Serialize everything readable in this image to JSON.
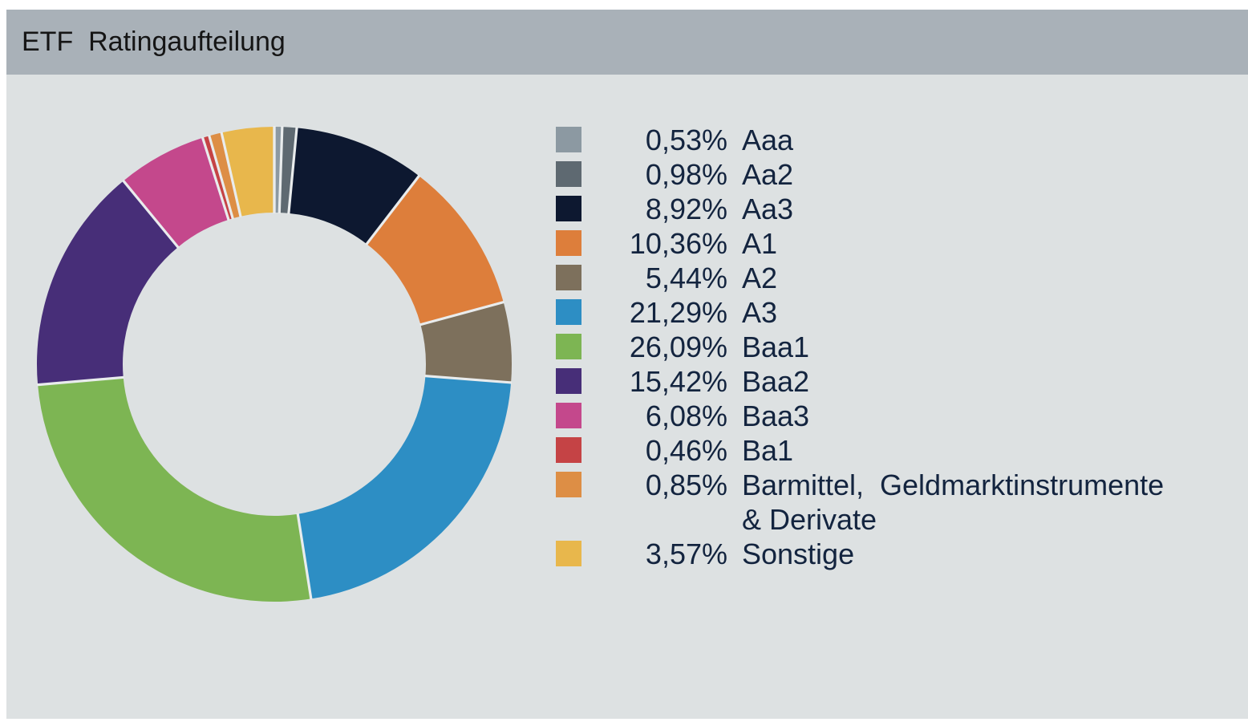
{
  "header": {
    "title": "ETF  Ratingaufteilung"
  },
  "colors": {
    "title_text": "#151515",
    "header_bg": "#a9b1b8",
    "panel_bg": "#dde1e2",
    "legend_text": "#13243f",
    "slice_gap": "#e9eced"
  },
  "chart_data": {
    "type": "pie",
    "variant": "donut",
    "title": "ETF Ratingaufteilung",
    "unit": "%",
    "direction": "clockwise",
    "start_angle_deg": 0,
    "inner_radius_ratio": 0.64,
    "legend_position": "right",
    "grid": false,
    "series": [
      {
        "label": "Aaa",
        "value": 0.53,
        "display": "0,53%",
        "color": "#8c99a2"
      },
      {
        "label": "Aa2",
        "value": 0.98,
        "display": "0,98%",
        "color": "#5e6971"
      },
      {
        "label": "Aa3",
        "value": 8.92,
        "display": "8,92%",
        "color": "#0d1830"
      },
      {
        "label": "A1",
        "value": 10.36,
        "display": "10,36%",
        "color": "#dd7e3b"
      },
      {
        "label": "A2",
        "value": 5.44,
        "display": "5,44%",
        "color": "#7d705c"
      },
      {
        "label": "A3",
        "value": 21.29,
        "display": "21,29%",
        "color": "#2d8ec4"
      },
      {
        "label": "Baa1",
        "value": 26.09,
        "display": "26,09%",
        "color": "#7db553"
      },
      {
        "label": "Baa2",
        "value": 15.42,
        "display": "15,42%",
        "color": "#472e78"
      },
      {
        "label": "Baa3",
        "value": 6.08,
        "display": "6,08%",
        "color": "#c4488c"
      },
      {
        "label": "Ba1",
        "value": 0.46,
        "display": "0,46%",
        "color": "#c54345"
      },
      {
        "label": "Barmittel,  Geldmarktinstrumente & Derivate",
        "value": 0.85,
        "display": "0,85%",
        "color": "#dd8e45"
      },
      {
        "label": "Sonstige",
        "value": 3.57,
        "display": "3,57%",
        "color": "#e8b74c"
      }
    ]
  }
}
